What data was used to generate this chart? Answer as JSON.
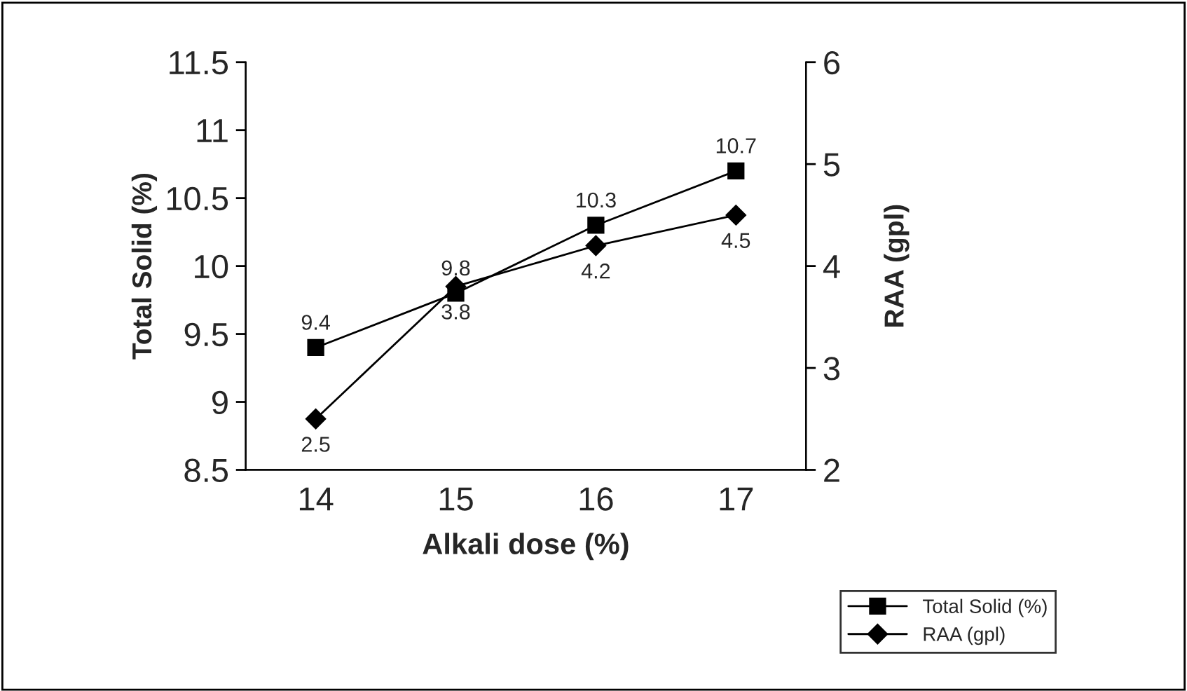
{
  "chart_data": {
    "type": "line",
    "xlabel": "Alkali dose (%)",
    "ylabel": "Total Solid (%)",
    "y2label": "RAA (gpl)",
    "categories": [
      "14",
      "15",
      "16",
      "17"
    ],
    "series": [
      {
        "name": "Total Solid (%)",
        "color": "#000000",
        "marker": "square",
        "values": [
          9.4,
          9.8,
          10.3,
          10.7
        ]
      },
      {
        "name": "RAA (gpl)",
        "color": "#000000",
        "marker": "diamond",
        "axis": "y2",
        "values": [
          2.5,
          3.8,
          4.2,
          4.5
        ]
      }
    ],
    "ylim": [
      8.5,
      11.5
    ],
    "yticks": [
      8.5,
      9,
      9.5,
      10,
      10.5,
      11,
      11.5
    ],
    "y2lim": [
      2,
      6
    ],
    "y2ticks": [
      2,
      3,
      4,
      5,
      6
    ],
    "data_labels": true,
    "grid": false,
    "legend": "bottom right",
    "line_style": "solid"
  }
}
